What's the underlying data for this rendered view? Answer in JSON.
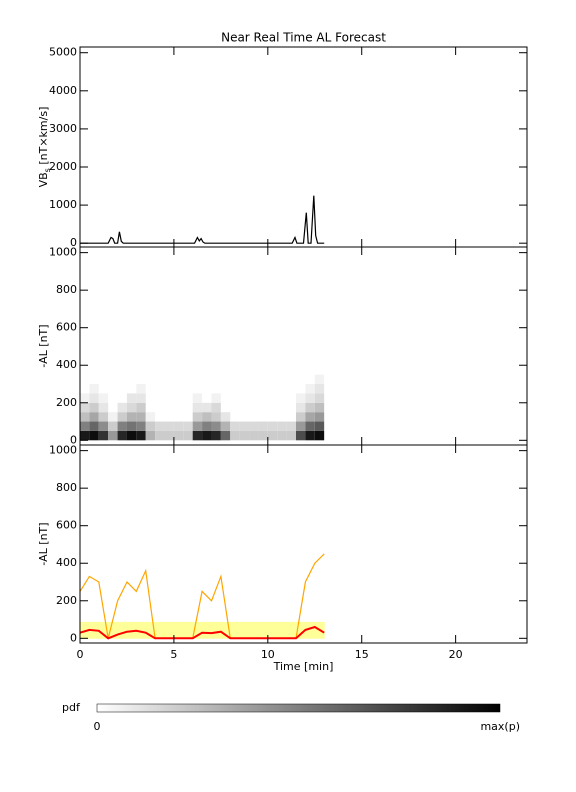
{
  "chart_data": [
    {
      "type": "line",
      "title": "Near Real Time AL Forecast",
      "ylabel": [
        "VB",
        "s",
        " [nT×km/s]"
      ],
      "xlim": [
        0,
        23.8
      ],
      "xticks": [
        0,
        5,
        10,
        15,
        20
      ],
      "ylim": [
        -100,
        5150
      ],
      "yticks": [
        0,
        1000,
        2000,
        3000,
        4000,
        5000
      ],
      "x": [
        0,
        1.5,
        1.65,
        1.75,
        1.85,
        2.0,
        2.1,
        2.2,
        2.3,
        6.1,
        6.25,
        6.35,
        6.45,
        6.55,
        6.65,
        11.3,
        11.45,
        11.55,
        11.9,
        12.05,
        12.15,
        12.3,
        12.45,
        12.55,
        12.65,
        13.0
      ],
      "series": [
        {
          "color": "#000000",
          "values": [
            0,
            0,
            150,
            120,
            0,
            0,
            300,
            50,
            0,
            0,
            150,
            60,
            120,
            30,
            0,
            0,
            150,
            0,
            0,
            800,
            0,
            0,
            1250,
            200,
            0,
            0
          ]
        }
      ]
    },
    {
      "type": "heatmap",
      "ylabel": [
        "-AL [nT]"
      ],
      "xlim": [
        0,
        23.8
      ],
      "xticks": [
        0,
        5,
        10,
        15,
        20
      ],
      "ylim": [
        -25,
        1030
      ],
      "yticks": [
        0,
        200,
        400,
        600,
        800,
        1000
      ],
      "x": [
        0.25,
        0.75,
        1.25,
        1.75,
        2.25,
        2.75,
        3.25,
        3.75,
        4.25,
        4.75,
        5.25,
        5.75,
        6.25,
        6.75,
        7.25,
        7.75,
        8.25,
        8.75,
        9.25,
        9.75,
        10.25,
        10.75,
        11.25,
        11.75,
        12.25,
        12.75
      ],
      "y": [
        25,
        75,
        125,
        175,
        225,
        275,
        325,
        375,
        425,
        475
      ],
      "z": [
        [
          0.9,
          0.5,
          0.25,
          0.15,
          0.05,
          0,
          0,
          0,
          0,
          0
        ],
        [
          0.95,
          0.6,
          0.35,
          0.2,
          0.1,
          0.05,
          0,
          0,
          0,
          0
        ],
        [
          0.8,
          0.45,
          0.2,
          0.1,
          0.05,
          0,
          0,
          0,
          0,
          0
        ],
        [
          0.4,
          0.2,
          0.05,
          0,
          0,
          0,
          0,
          0,
          0,
          0
        ],
        [
          0.85,
          0.5,
          0.2,
          0.1,
          0,
          0,
          0,
          0,
          0,
          0
        ],
        [
          0.95,
          0.55,
          0.3,
          0.15,
          0.1,
          0,
          0,
          0,
          0,
          0
        ],
        [
          0.9,
          0.5,
          0.3,
          0.2,
          0.1,
          0.05,
          0,
          0,
          0,
          0
        ],
        [
          0.3,
          0.2,
          0.05,
          0,
          0,
          0,
          0,
          0,
          0,
          0
        ],
        [
          0.2,
          0.15,
          0,
          0,
          0,
          0,
          0,
          0,
          0,
          0
        ],
        [
          0.2,
          0.15,
          0,
          0,
          0,
          0,
          0,
          0,
          0,
          0
        ],
        [
          0.2,
          0.15,
          0,
          0,
          0,
          0,
          0,
          0,
          0,
          0
        ],
        [
          0.2,
          0.15,
          0,
          0,
          0,
          0,
          0,
          0,
          0,
          0
        ],
        [
          0.85,
          0.4,
          0.2,
          0.1,
          0.05,
          0,
          0,
          0,
          0,
          0
        ],
        [
          0.9,
          0.5,
          0.25,
          0.1,
          0,
          0,
          0,
          0,
          0,
          0
        ],
        [
          0.85,
          0.45,
          0.2,
          0.15,
          0.05,
          0,
          0,
          0,
          0,
          0
        ],
        [
          0.6,
          0.3,
          0.1,
          0,
          0,
          0,
          0,
          0,
          0,
          0
        ],
        [
          0.2,
          0.15,
          0,
          0,
          0,
          0,
          0,
          0,
          0,
          0
        ],
        [
          0.2,
          0.15,
          0,
          0,
          0,
          0,
          0,
          0,
          0,
          0
        ],
        [
          0.2,
          0.15,
          0,
          0,
          0,
          0,
          0,
          0,
          0,
          0
        ],
        [
          0.2,
          0.15,
          0,
          0,
          0,
          0,
          0,
          0,
          0,
          0
        ],
        [
          0.2,
          0.15,
          0,
          0,
          0,
          0,
          0,
          0,
          0,
          0
        ],
        [
          0.2,
          0.15,
          0,
          0,
          0,
          0,
          0,
          0,
          0,
          0
        ],
        [
          0.2,
          0.15,
          0,
          0,
          0,
          0,
          0,
          0,
          0,
          0
        ],
        [
          0.7,
          0.4,
          0.2,
          0.1,
          0.05,
          0,
          0,
          0,
          0,
          0
        ],
        [
          0.9,
          0.6,
          0.35,
          0.2,
          0.1,
          0.05,
          0,
          0,
          0,
          0
        ],
        [
          0.95,
          0.65,
          0.4,
          0.25,
          0.15,
          0.1,
          0.05,
          0,
          0,
          0
        ]
      ]
    },
    {
      "type": "line",
      "ylabel": [
        "-AL [nT]"
      ],
      "xlabel": "Time [min]",
      "xlim": [
        0,
        23.8
      ],
      "xticks": [
        0,
        5,
        10,
        15,
        20
      ],
      "ylim": [
        -25,
        1030
      ],
      "yticks": [
        0,
        200,
        400,
        600,
        800,
        1000
      ],
      "x": [
        0,
        0.5,
        1,
        1.5,
        2,
        2.5,
        3,
        3.5,
        4,
        4.5,
        5,
        5.5,
        6,
        6.5,
        7,
        7.5,
        8,
        8.5,
        9,
        9.5,
        10,
        10.5,
        11,
        11.5,
        12,
        12.5,
        13
      ],
      "series": [
        {
          "color": "#ffff99",
          "style": "area",
          "values": [
            85,
            85,
            85,
            85,
            85,
            85,
            85,
            85,
            85,
            85,
            85,
            85,
            85,
            85,
            85,
            85,
            85,
            85,
            85,
            85,
            85,
            85,
            85,
            85,
            85,
            85,
            85
          ]
        },
        {
          "color": "#ffa500",
          "values": [
            250,
            330,
            300,
            0,
            200,
            300,
            250,
            360,
            0,
            0,
            0,
            0,
            0,
            250,
            200,
            330,
            0,
            0,
            0,
            0,
            0,
            0,
            0,
            0,
            300,
            400,
            450
          ]
        },
        {
          "color": "#ff0000",
          "width": 2,
          "values": [
            30,
            45,
            40,
            0,
            20,
            35,
            40,
            30,
            0,
            0,
            0,
            0,
            0,
            30,
            28,
            35,
            0,
            0,
            0,
            0,
            0,
            0,
            0,
            0,
            45,
            60,
            30
          ]
        }
      ]
    },
    {
      "type": "colorbar",
      "label": "pdf",
      "min_label": "0",
      "max_label": "max(p)"
    }
  ]
}
